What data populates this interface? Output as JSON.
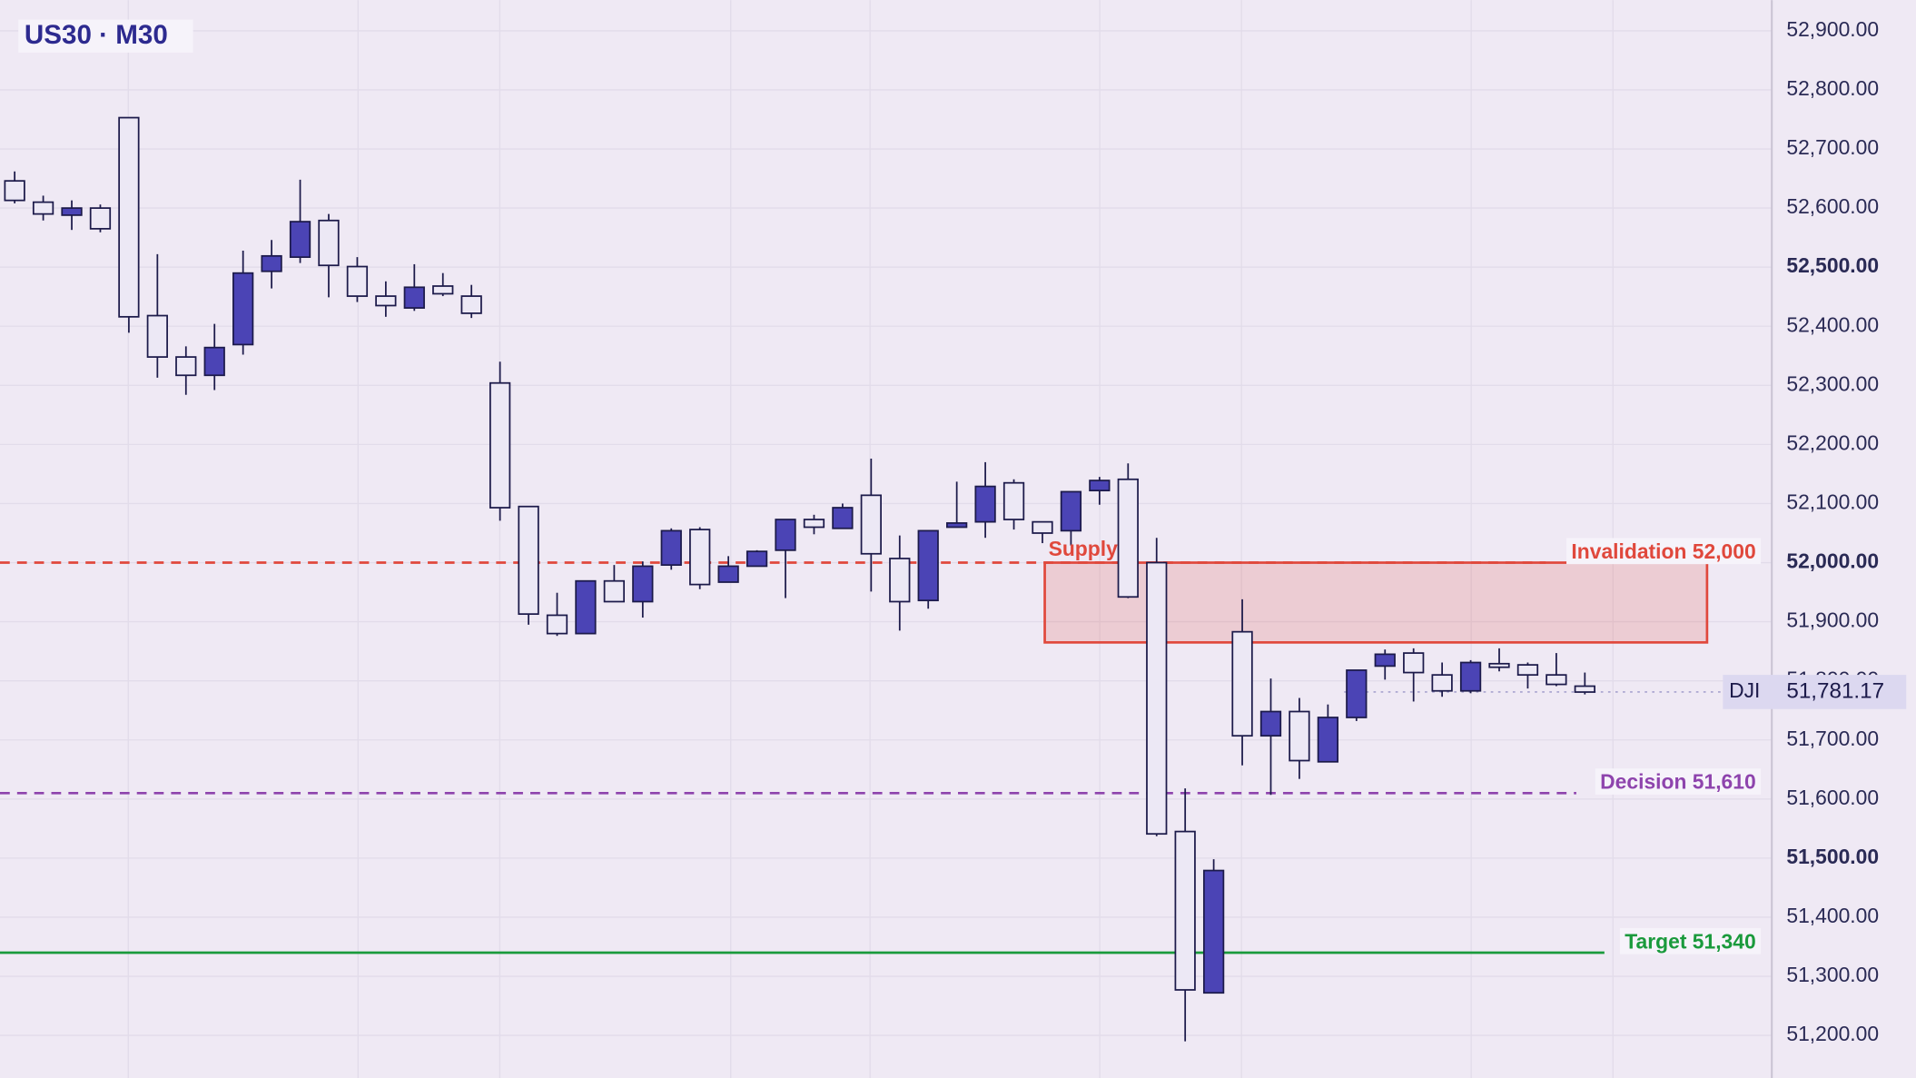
{
  "chart_data": {
    "type": "candlestick",
    "title": "US30 · M30",
    "up_color": "#4b44b5",
    "down_color": "#ece8f5",
    "wick_color": "#1c1a4a",
    "ylim": [
      51128,
      52952
    ],
    "yticks": [
      {
        "value": 51200,
        "label": "51,200.00"
      },
      {
        "value": 51300,
        "label": "51,300.00"
      },
      {
        "value": 51400,
        "label": "51,400.00"
      },
      {
        "value": 51500,
        "label": "51,500.00"
      },
      {
        "value": 51600,
        "label": "51,600.00"
      },
      {
        "value": 51700,
        "label": "51,700.00"
      },
      {
        "value": 51800,
        "label": "51,800.00"
      },
      {
        "value": 51900,
        "label": "51,900.00"
      },
      {
        "value": 52000,
        "label": "52,000.00"
      },
      {
        "value": 52100,
        "label": "52,100.00"
      },
      {
        "value": 52200,
        "label": "52,200.00"
      },
      {
        "value": 52300,
        "label": "52,300.00"
      },
      {
        "value": 52400,
        "label": "52,400.00"
      },
      {
        "value": 52500,
        "label": "52,500.00"
      },
      {
        "value": 52600,
        "label": "52,600.00"
      },
      {
        "value": 52700,
        "label": "52,700.00"
      },
      {
        "value": 52800,
        "label": "52,800.00"
      },
      {
        "value": 52900,
        "label": "52,900.00"
      }
    ],
    "grid": true,
    "open": [
      52646,
      52610,
      52588,
      52600,
      52753,
      52418,
      52348,
      52317,
      52369,
      52493,
      52517,
      52579,
      52501,
      52451,
      52431,
      52468,
      52451,
      52304,
      52095,
      51911,
      51880,
      51969,
      51934,
      51996,
      52056,
      51967,
      51994,
      52021,
      52073,
      52058,
      52114,
      52007,
      51936,
      52060,
      52069,
      52135,
      52069,
      52054,
      52122,
      52141,
      52000,
      51545,
      51272,
      51883,
      51707,
      51748,
      51663,
      51738,
      51825,
      51847,
      51810,
      51783,
      51829,
      51827,
      51810,
      51791
    ],
    "high": [
      52662,
      52621,
      52613,
      52606,
      52753,
      52522,
      52366,
      52404,
      52528,
      52546,
      52648,
      52590,
      52517,
      52476,
      52505,
      52490,
      52470,
      52340,
      52095,
      51949,
      51969,
      51996,
      52002,
      52058,
      52060,
      52011,
      52021,
      52073,
      52081,
      52100,
      52176,
      52046,
      52054,
      52137,
      52170,
      52141,
      52069,
      52120,
      52145,
      52168,
      52042,
      51618,
      51498,
      51938,
      51804,
      51771,
      51760,
      51818,
      51853,
      51855,
      51831,
      51835,
      51855,
      51831,
      51847,
      51814
    ],
    "low": [
      52608,
      52579,
      52563,
      52559,
      52389,
      52313,
      52284,
      52292,
      52352,
      52464,
      52507,
      52449,
      52441,
      52416,
      52426,
      52451,
      52414,
      52071,
      51895,
      51876,
      51880,
      51934,
      51907,
      51988,
      51955,
      51967,
      51994,
      51940,
      52048,
      52058,
      51951,
      51885,
      51922,
      52060,
      52042,
      52056,
      52033,
      52029,
      52098,
      51940,
      51537,
      51190,
      51272,
      51657,
      51607,
      51634,
      51663,
      51732,
      51802,
      51765,
      51773,
      51779,
      51816,
      51787,
      51791,
      51777
    ],
    "close": [
      52613,
      52590,
      52600,
      52565,
      52416,
      52348,
      52317,
      52364,
      52490,
      52519,
      52577,
      52503,
      52451,
      52435,
      52466,
      52455,
      52422,
      52093,
      51913,
      51880,
      51969,
      51934,
      51994,
      52054,
      51963,
      51994,
      52019,
      52073,
      52060,
      52093,
      52015,
      51934,
      52054,
      52067,
      52129,
      52073,
      52050,
      52120,
      52139,
      51942,
      51541,
      51277,
      51479,
      51707,
      51748,
      51665,
      51738,
      51818,
      51845,
      51814,
      51783,
      51831,
      51823,
      51810,
      51794,
      51781
    ],
    "levels": [
      {
        "label": "Invalidation 52,000",
        "value": 52000,
        "color": "#e0483c",
        "style": "dashed"
      },
      {
        "label": "Decision 51,610",
        "value": 51610,
        "color": "#8e44ad",
        "style": "dashed"
      },
      {
        "label": "Target 51,340",
        "value": 51340,
        "color": "#1a9a3c",
        "style": "solid"
      }
    ],
    "zone": {
      "label": "Supply",
      "low": 51865,
      "high": 52000,
      "color": "#e0483c"
    },
    "current_price": {
      "name": "DJI",
      "value": 51781.17,
      "label": "51,781.17"
    }
  }
}
